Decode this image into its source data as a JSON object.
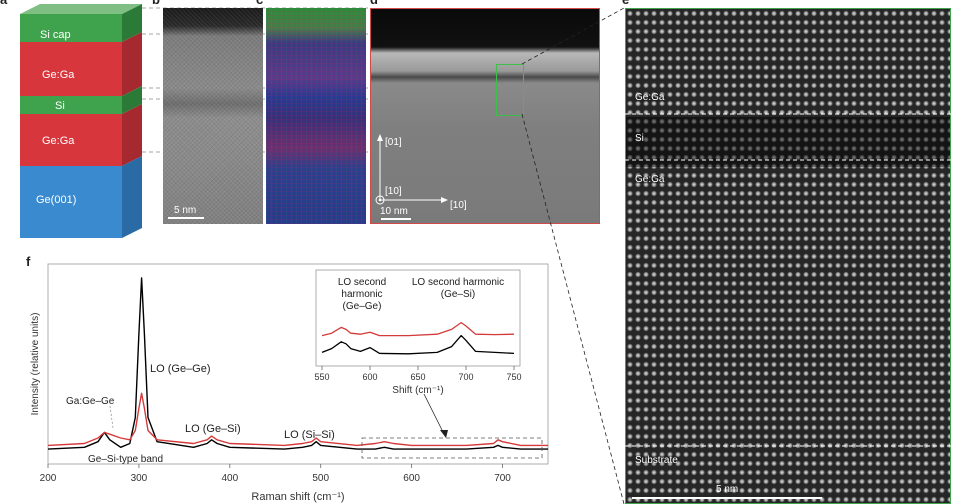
{
  "panels": {
    "a_label": "a",
    "b_label": "b",
    "c_label": "c",
    "d_label": "d",
    "e_label": "e",
    "f_label": "f"
  },
  "stack": {
    "layers": [
      "Si cap",
      "Ge:Ga",
      "Si",
      "Ge:Ga",
      "Ge(001)"
    ],
    "colors": {
      "si": "#3fa34d",
      "ge_ga": "#d7363d",
      "ge": "#3a8ad0"
    }
  },
  "panel_b": {
    "scale_text": "5 nm"
  },
  "panel_d": {
    "axis_vertical": "[01]",
    "axis_horizontal": "[10]",
    "axis_out": "[10]",
    "scale_text": "10 nm"
  },
  "panel_e": {
    "labels": [
      "Ge:Ga",
      "Si",
      "Ge:Ga",
      "Substrate"
    ],
    "scale_text": "5 nm"
  },
  "chart_data": {
    "type": "line",
    "xlabel": "Raman shift (cm⁻¹)",
    "ylabel": "Intensity (relative units)",
    "xlim": [
      200,
      750
    ],
    "xticks": [
      200,
      300,
      400,
      500,
      600,
      700
    ],
    "series": [
      {
        "color": "#000000",
        "x": [
          200,
          240,
          255,
          262,
          268,
          280,
          290,
          296,
          300,
          303,
          306,
          310,
          320,
          360,
          375,
          380,
          386,
          400,
          460,
          480,
          490,
          495,
          500,
          540,
          560,
          570,
          580,
          600,
          660,
          690,
          695,
          700,
          720,
          750
        ],
        "y": [
          0.08,
          0.09,
          0.12,
          0.17,
          0.13,
          0.09,
          0.11,
          0.25,
          0.7,
          1.0,
          0.7,
          0.25,
          0.12,
          0.09,
          0.11,
          0.13,
          0.11,
          0.09,
          0.08,
          0.09,
          0.1,
          0.12,
          0.1,
          0.08,
          0.08,
          0.09,
          0.08,
          0.08,
          0.08,
          0.09,
          0.1,
          0.09,
          0.08,
          0.08
        ]
      },
      {
        "color": "#d43a3a",
        "x": [
          200,
          240,
          255,
          262,
          268,
          280,
          290,
          296,
          300,
          303,
          306,
          310,
          320,
          360,
          375,
          380,
          386,
          400,
          460,
          480,
          490,
          495,
          500,
          540,
          560,
          570,
          580,
          600,
          660,
          690,
          695,
          700,
          720,
          750
        ],
        "y": [
          0.1,
          0.11,
          0.14,
          0.17,
          0.16,
          0.14,
          0.13,
          0.18,
          0.3,
          0.38,
          0.3,
          0.18,
          0.13,
          0.11,
          0.13,
          0.15,
          0.13,
          0.11,
          0.1,
          0.11,
          0.12,
          0.14,
          0.12,
          0.1,
          0.11,
          0.12,
          0.11,
          0.1,
          0.1,
          0.11,
          0.13,
          0.12,
          0.1,
          0.1
        ]
      }
    ],
    "annotations": [
      "LO (Ge–Ge)",
      "Ga:Ge–Ge",
      "Ge–Si-type band",
      "LO (Ge–Si)",
      "LO (Si–Si)"
    ],
    "inset": {
      "xlabel": "Shift (cm⁻¹)",
      "xlim": [
        550,
        750
      ],
      "xticks": [
        550,
        600,
        650,
        700,
        750
      ],
      "annotations": [
        "LO second",
        "harmonic",
        "(Ge–Ge)",
        "LO second harmonic",
        "(Ge–Si)"
      ],
      "series": [
        {
          "color": "#d43a3a",
          "x": [
            550,
            560,
            570,
            575,
            580,
            590,
            600,
            610,
            640,
            670,
            685,
            695,
            700,
            710,
            730,
            750
          ],
          "y": [
            0.55,
            0.6,
            0.72,
            0.68,
            0.6,
            0.58,
            0.62,
            0.55,
            0.55,
            0.58,
            0.68,
            0.82,
            0.75,
            0.58,
            0.57,
            0.58
          ]
        },
        {
          "color": "#000000",
          "x": [
            550,
            560,
            570,
            575,
            580,
            590,
            600,
            610,
            640,
            670,
            685,
            695,
            700,
            710,
            730,
            750
          ],
          "y": [
            0.2,
            0.28,
            0.42,
            0.38,
            0.28,
            0.22,
            0.3,
            0.18,
            0.17,
            0.2,
            0.32,
            0.55,
            0.45,
            0.22,
            0.2,
            0.18
          ]
        }
      ]
    }
  }
}
